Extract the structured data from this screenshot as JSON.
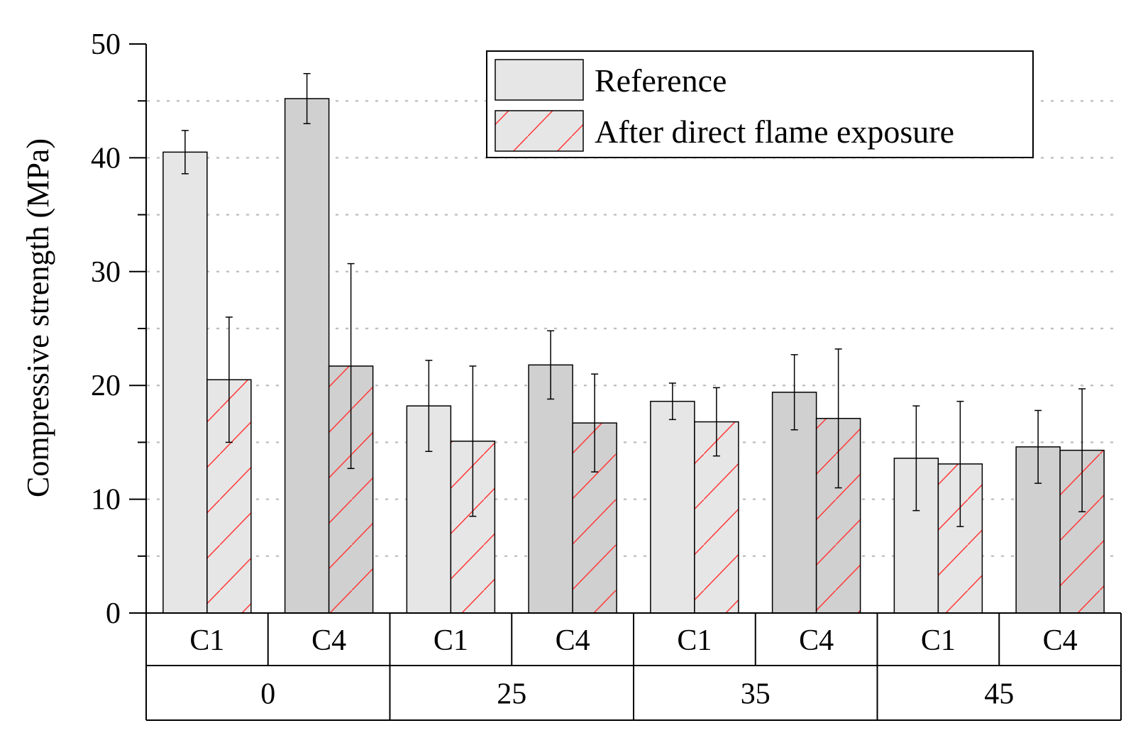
{
  "chart_data": {
    "type": "bar",
    "ylabel": "Compressive strength (MPa)",
    "ylim": [
      0,
      50
    ],
    "yticks": [
      0,
      10,
      20,
      30,
      40,
      50
    ],
    "grid": "horizontal-dotted",
    "legend_position": "top-right",
    "legend": [
      "Reference",
      "After direct flame exposure"
    ],
    "groups": [
      {
        "label": "0",
        "subgroups": [
          {
            "label": "C1",
            "reference": 40.5,
            "reference_err": 1.9,
            "after": 20.5,
            "after_err": 5.5
          },
          {
            "label": "C4",
            "reference": 45.2,
            "reference_err": 2.2,
            "after": 21.7,
            "after_err": 9.0
          }
        ]
      },
      {
        "label": "25",
        "subgroups": [
          {
            "label": "C1",
            "reference": 18.2,
            "reference_err": 4.0,
            "after": 15.1,
            "after_err": 6.6
          },
          {
            "label": "C4",
            "reference": 21.8,
            "reference_err": 3.0,
            "after": 16.7,
            "after_err": 4.3
          }
        ]
      },
      {
        "label": "35",
        "subgroups": [
          {
            "label": "C1",
            "reference": 18.6,
            "reference_err": 1.6,
            "after": 16.8,
            "after_err": 3.0
          },
          {
            "label": "C4",
            "reference": 19.4,
            "reference_err": 3.3,
            "after": 17.1,
            "after_err": 6.1
          }
        ]
      },
      {
        "label": "45",
        "subgroups": [
          {
            "label": "C1",
            "reference": 13.6,
            "reference_err": 4.6,
            "after": 13.1,
            "after_err": 5.5
          },
          {
            "label": "C4",
            "reference": 14.6,
            "reference_err": 3.2,
            "after": 14.3,
            "after_err": 5.4
          }
        ]
      }
    ],
    "colors": {
      "c1_fill": "#e6e6e6",
      "c4_fill": "#d0d0d0",
      "hatch": "#ff3b3b",
      "bar_stroke": "#000000",
      "grid": "#c0c0c0"
    }
  }
}
